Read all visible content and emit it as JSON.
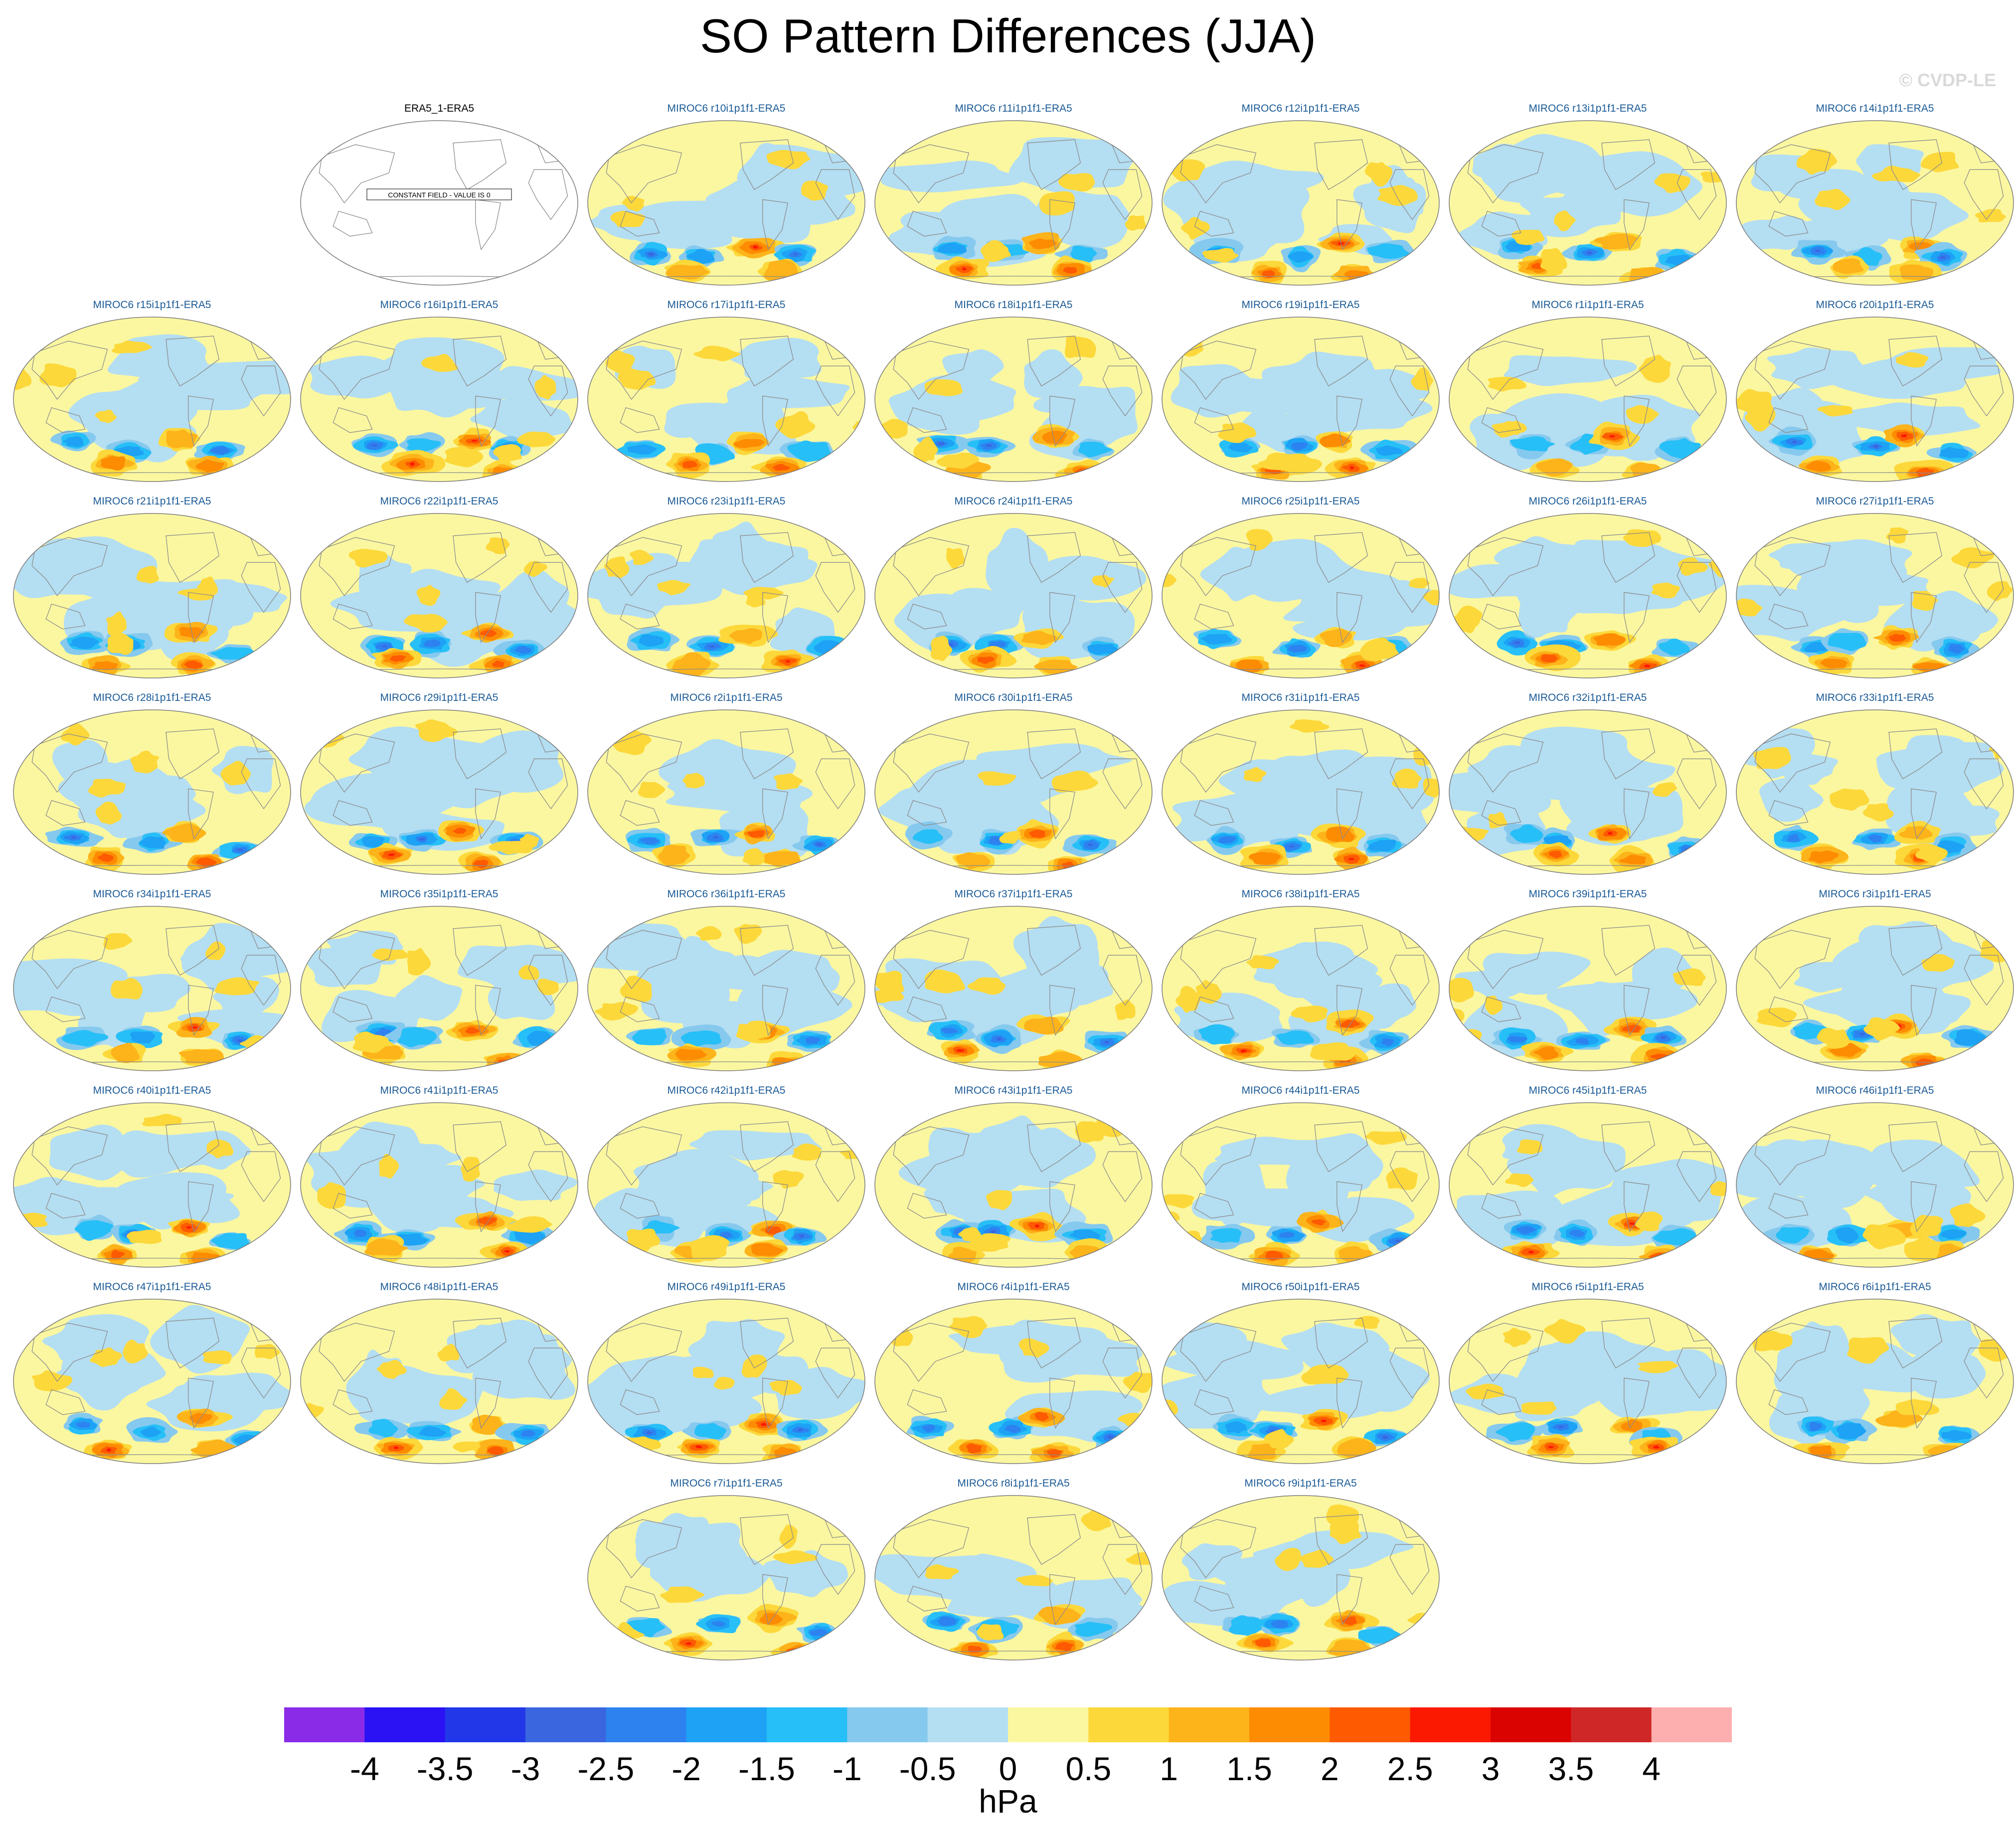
{
  "title": "SO Pattern Differences (JJA)",
  "watermark": "© CVDP-LE",
  "constant_field_note": "CONSTANT FIELD - VALUE IS 0",
  "panels": [
    {
      "title": "ERA5_1-ERA5",
      "ref": true
    },
    {
      "title": "MIROC6 r10i1p1f1-ERA5",
      "seed": 10
    },
    {
      "title": "MIROC6 r11i1p1f1-ERA5",
      "seed": 11
    },
    {
      "title": "MIROC6 r12i1p1f1-ERA5",
      "seed": 12
    },
    {
      "title": "MIROC6 r13i1p1f1-ERA5",
      "seed": 13
    },
    {
      "title": "MIROC6 r14i1p1f1-ERA5",
      "seed": 14
    },
    {
      "title": "MIROC6 r15i1p1f1-ERA5",
      "seed": 15
    },
    {
      "title": "MIROC6 r16i1p1f1-ERA5",
      "seed": 16
    },
    {
      "title": "MIROC6 r17i1p1f1-ERA5",
      "seed": 17
    },
    {
      "title": "MIROC6 r18i1p1f1-ERA5",
      "seed": 18
    },
    {
      "title": "MIROC6 r19i1p1f1-ERA5",
      "seed": 19
    },
    {
      "title": "MIROC6 r1i1p1f1-ERA5",
      "seed": 1
    },
    {
      "title": "MIROC6 r20i1p1f1-ERA5",
      "seed": 20
    },
    {
      "title": "MIROC6 r21i1p1f1-ERA5",
      "seed": 21
    },
    {
      "title": "MIROC6 r22i1p1f1-ERA5",
      "seed": 22
    },
    {
      "title": "MIROC6 r23i1p1f1-ERA5",
      "seed": 23
    },
    {
      "title": "MIROC6 r24i1p1f1-ERA5",
      "seed": 24
    },
    {
      "title": "MIROC6 r25i1p1f1-ERA5",
      "seed": 25
    },
    {
      "title": "MIROC6 r26i1p1f1-ERA5",
      "seed": 26
    },
    {
      "title": "MIROC6 r27i1p1f1-ERA5",
      "seed": 27
    },
    {
      "title": "MIROC6 r28i1p1f1-ERA5",
      "seed": 28
    },
    {
      "title": "MIROC6 r29i1p1f1-ERA5",
      "seed": 29
    },
    {
      "title": "MIROC6 r2i1p1f1-ERA5",
      "seed": 2
    },
    {
      "title": "MIROC6 r30i1p1f1-ERA5",
      "seed": 30
    },
    {
      "title": "MIROC6 r31i1p1f1-ERA5",
      "seed": 31
    },
    {
      "title": "MIROC6 r32i1p1f1-ERA5",
      "seed": 32
    },
    {
      "title": "MIROC6 r33i1p1f1-ERA5",
      "seed": 33
    },
    {
      "title": "MIROC6 r34i1p1f1-ERA5",
      "seed": 34
    },
    {
      "title": "MIROC6 r35i1p1f1-ERA5",
      "seed": 35
    },
    {
      "title": "MIROC6 r36i1p1f1-ERA5",
      "seed": 36
    },
    {
      "title": "MIROC6 r37i1p1f1-ERA5",
      "seed": 37
    },
    {
      "title": "MIROC6 r38i1p1f1-ERA5",
      "seed": 38
    },
    {
      "title": "MIROC6 r39i1p1f1-ERA5",
      "seed": 39
    },
    {
      "title": "MIROC6 r3i1p1f1-ERA5",
      "seed": 3
    },
    {
      "title": "MIROC6 r40i1p1f1-ERA5",
      "seed": 40
    },
    {
      "title": "MIROC6 r41i1p1f1-ERA5",
      "seed": 41
    },
    {
      "title": "MIROC6 r42i1p1f1-ERA5",
      "seed": 42
    },
    {
      "title": "MIROC6 r43i1p1f1-ERA5",
      "seed": 43
    },
    {
      "title": "MIROC6 r44i1p1f1-ERA5",
      "seed": 44
    },
    {
      "title": "MIROC6 r45i1p1f1-ERA5",
      "seed": 45
    },
    {
      "title": "MIROC6 r46i1p1f1-ERA5",
      "seed": 46
    },
    {
      "title": "MIROC6 r47i1p1f1-ERA5",
      "seed": 47
    },
    {
      "title": "MIROC6 r48i1p1f1-ERA5",
      "seed": 48
    },
    {
      "title": "MIROC6 r49i1p1f1-ERA5",
      "seed": 49
    },
    {
      "title": "MIROC6 r4i1p1f1-ERA5",
      "seed": 4
    },
    {
      "title": "MIROC6 r50i1p1f1-ERA5",
      "seed": 50
    },
    {
      "title": "MIROC6 r5i1p1f1-ERA5",
      "seed": 5
    },
    {
      "title": "MIROC6 r6i1p1f1-ERA5",
      "seed": 6
    },
    {
      "title": "MIROC6 r7i1p1f1-ERA5",
      "seed": 7
    },
    {
      "title": "MIROC6 r8i1p1f1-ERA5",
      "seed": 8
    },
    {
      "title": "MIROC6 r9i1p1f1-ERA5",
      "seed": 9
    }
  ],
  "colorbar": {
    "unit": "hPa",
    "labels": [
      "-4",
      "-3.5",
      "-3",
      "-2.5",
      "-2",
      "-1.5",
      "-1",
      "-0.5",
      "0",
      "0.5",
      "1",
      "1.5",
      "2",
      "2.5",
      "3",
      "3.5",
      "4"
    ],
    "colors": [
      "#8a2be8",
      "#2a12f5",
      "#2238e8",
      "#3a66df",
      "#2d82f0",
      "#1da2f5",
      "#27bff7",
      "#86c9ee",
      "#b4def2",
      "#fbf7a0",
      "#fcd83a",
      "#fdb31a",
      "#fd8c02",
      "#fd5a02",
      "#fc1902",
      "#db0202",
      "#cf2727",
      "#fdafaf"
    ]
  },
  "map_colors": {
    "ocean_weak_pos": "#fbf7a0",
    "weak_neg": "#b4def2",
    "coastline": "#8c8c8c",
    "outline": "#7a7a7a"
  }
}
